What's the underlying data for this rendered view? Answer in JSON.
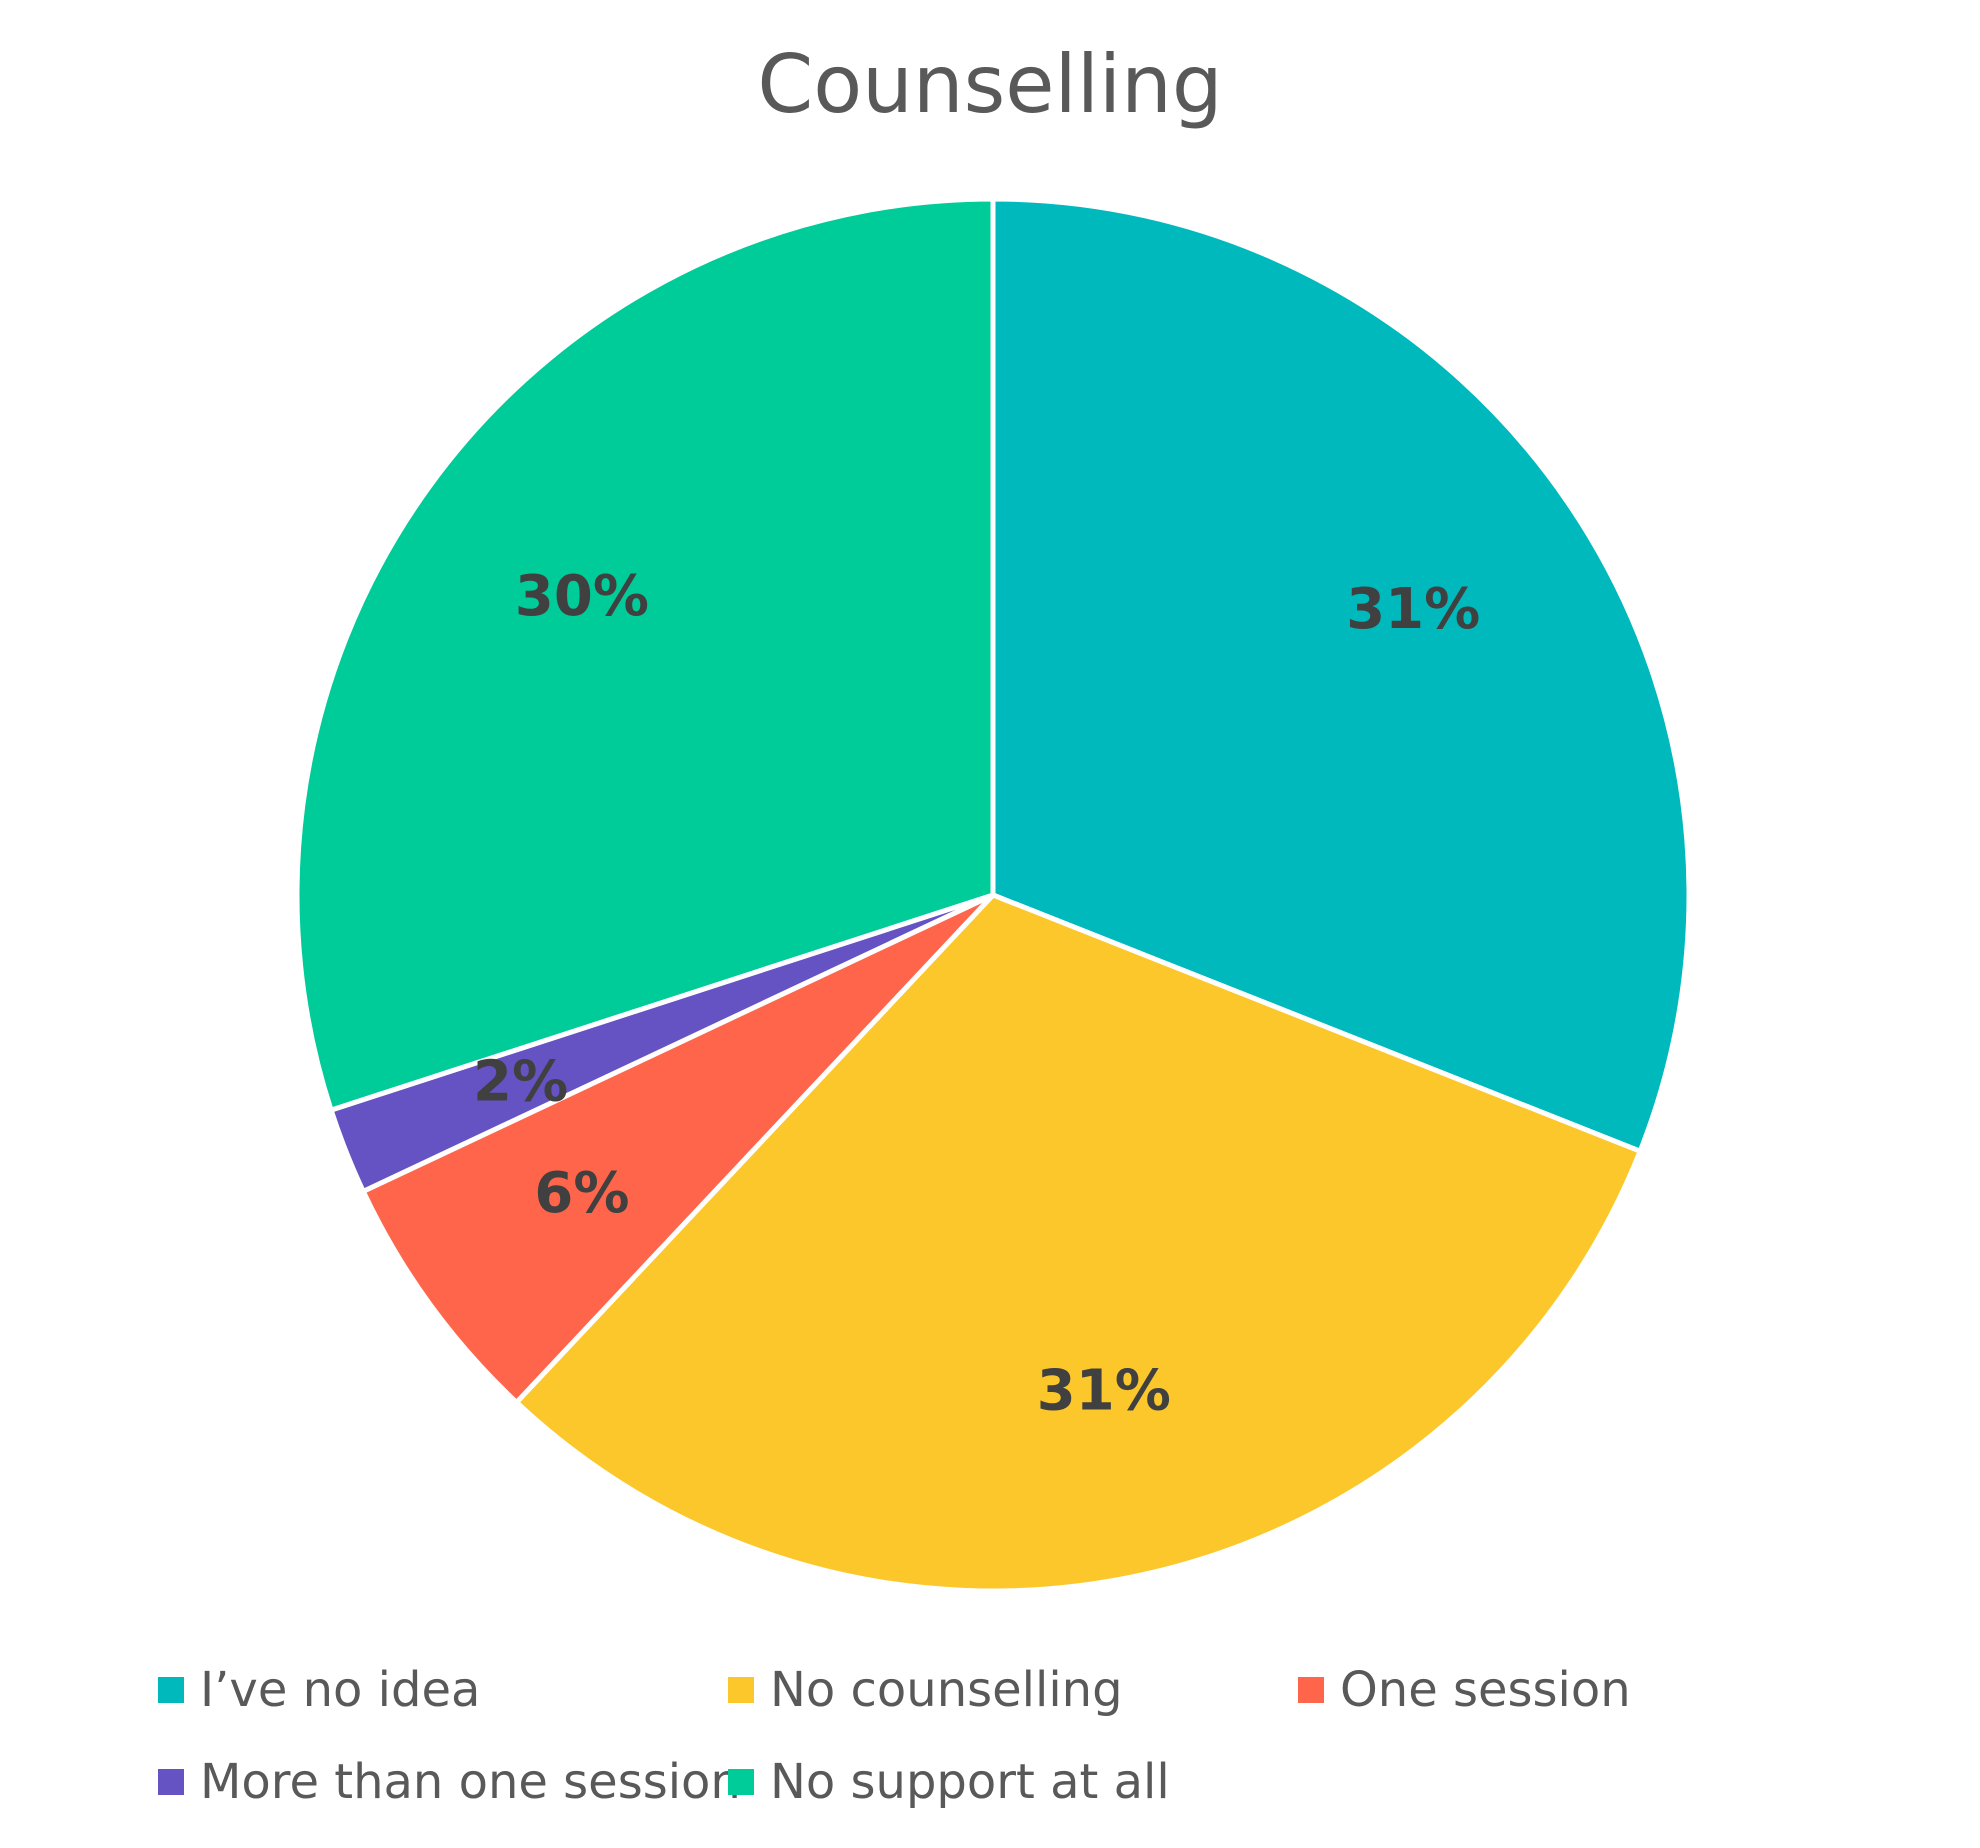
{
  "chart_data": {
    "type": "pie",
    "title": "Counselling",
    "legend_position": "bottom",
    "slices": [
      {
        "name": "I’ve no idea",
        "value": 31,
        "label": "31%",
        "color": "#00B9BC"
      },
      {
        "name": "No counselling",
        "value": 31,
        "label": "31%",
        "color": "#FCC72A"
      },
      {
        "name": "One session",
        "value": 6,
        "label": "6%",
        "color": "#FF654B"
      },
      {
        "name": "More than one session",
        "value": 2,
        "label": "2%",
        "color": "#6553C4"
      },
      {
        "name": "No support at all",
        "value": 30,
        "label": "30%",
        "color": "#00CC99"
      }
    ]
  }
}
